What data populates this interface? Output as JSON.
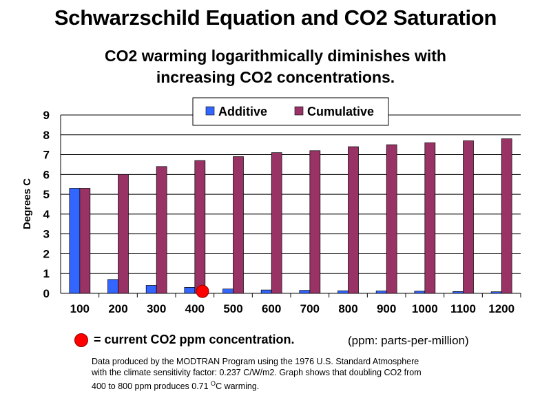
{
  "title": "Schwarzschild Equation and CO2 Saturation",
  "subtitle_line1": "CO2 warming logarithmically diminishes with",
  "subtitle_line2": "increasing CO2 concentrations.",
  "chart_data": {
    "type": "bar",
    "categories": [
      "100",
      "200",
      "300",
      "400",
      "500",
      "600",
      "700",
      "800",
      "900",
      "1000",
      "1100",
      "1200"
    ],
    "series": [
      {
        "name": "Additive",
        "color": "#3366ff",
        "values": [
          5.3,
          0.7,
          0.4,
          0.3,
          0.22,
          0.17,
          0.15,
          0.13,
          0.12,
          0.11,
          0.09,
          0.08
        ]
      },
      {
        "name": "Cumulative",
        "color": "#993366",
        "values": [
          5.3,
          6.0,
          6.4,
          6.7,
          6.9,
          7.1,
          7.2,
          7.4,
          7.5,
          7.6,
          7.7,
          7.8
        ]
      }
    ],
    "ylabel": "Degrees C",
    "ylim": [
      0,
      9
    ],
    "yticks": [
      "0",
      "1",
      "2",
      "3",
      "4",
      "5",
      "6",
      "7",
      "8",
      "9"
    ],
    "grid": true,
    "legend_position": "top-center",
    "current_marker": {
      "x_ppm": 420,
      "y": 0.1,
      "color": "#ff0000"
    }
  },
  "footer": {
    "marker_label": "= current CO2 ppm concentration.",
    "unit_note": "(ppm: parts-per-million)",
    "note_line1": "Data produced by the MODTRAN Program using the 1976 U.S. Standard Atmosphere",
    "note_line2": "with the climate sensitivity factor: 0.237 C/W/m2.  Graph shows that doubling CO2 from",
    "note_line3_pre": "400 to 800 ppm produces 0.71 ",
    "note_line3_sup": "O",
    "note_line3_post": "C warming."
  }
}
